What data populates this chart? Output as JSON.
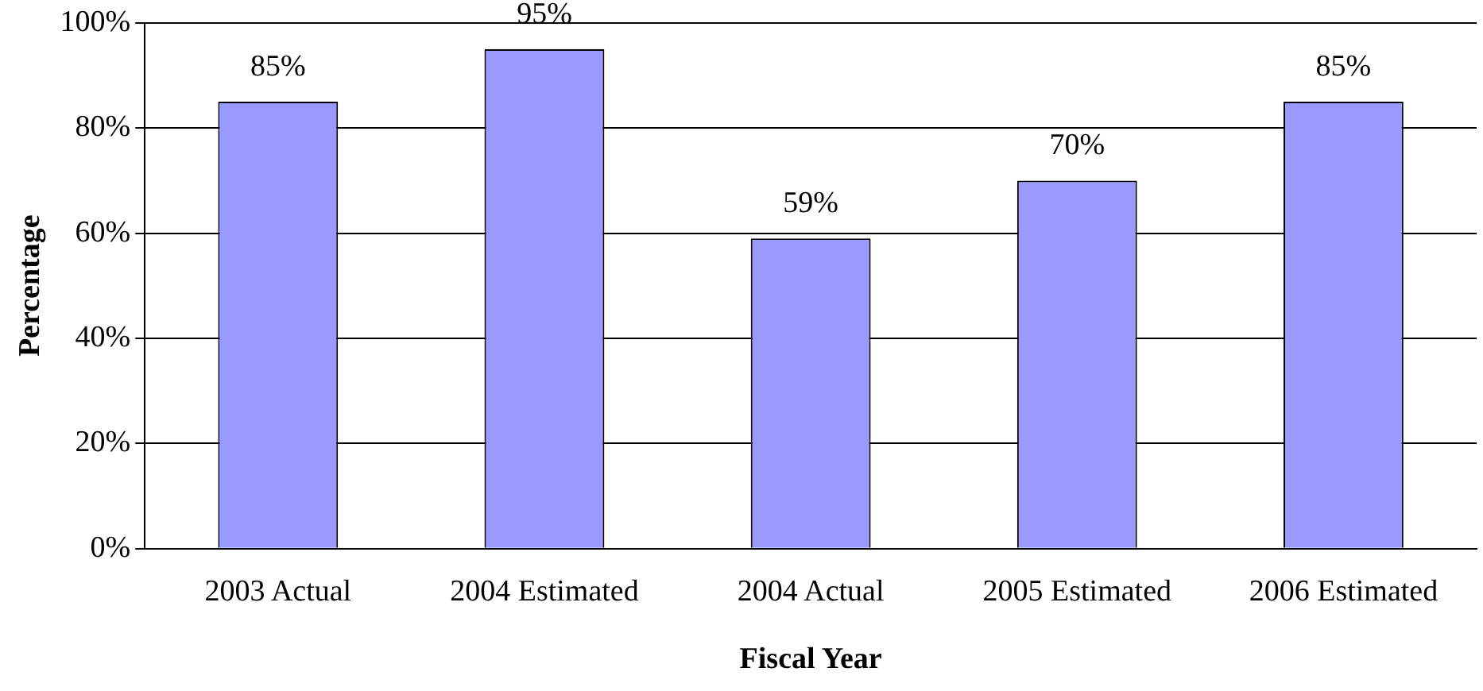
{
  "chart_data": {
    "type": "bar",
    "xlabel": "Fiscal Year",
    "ylabel": "Percentage",
    "categories": [
      "2003 Actual",
      "2004 Estimated",
      "2004 Actual",
      "2005 Estimated",
      "2006 Estimated"
    ],
    "values": [
      85,
      95,
      59,
      70,
      85
    ],
    "value_labels": [
      "85%",
      "95%",
      "59%",
      "70%",
      "85%"
    ],
    "color": "#9999ff",
    "ylim": [
      0,
      100
    ],
    "yticks": [
      {
        "value": 0,
        "label": "0%"
      },
      {
        "value": 20,
        "label": "20%"
      },
      {
        "value": 40,
        "label": "40%"
      },
      {
        "value": 60,
        "label": "60%"
      },
      {
        "value": 80,
        "label": "80%"
      },
      {
        "value": 100,
        "label": "100%"
      }
    ],
    "grid": "y",
    "legend": false
  }
}
